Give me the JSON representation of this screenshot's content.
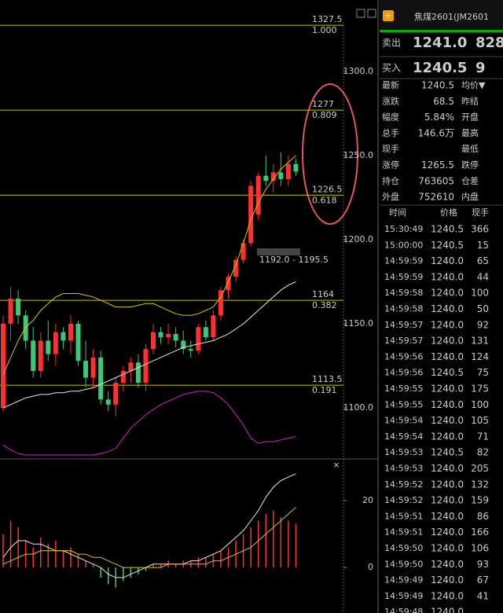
{
  "header": {
    "title": "焦煤2601(JM2601"
  },
  "quote": {
    "sell": {
      "label": "卖出",
      "price": "1241.0",
      "volume": "828"
    },
    "buy": {
      "label": "买入",
      "price": "1240.5",
      "volume": "9"
    },
    "rows": [
      {
        "label": "最新",
        "value": "1240.5",
        "color": "#ff4040",
        "label2": "均价▼"
      },
      {
        "label": "涨跌",
        "value": "68.5",
        "color": "#ff4040",
        "label2": "昨结"
      },
      {
        "label": "幅度",
        "value": "5.84%",
        "color": "#ff4040",
        "label2": "开盘"
      },
      {
        "label": "总手",
        "value": "146.6万",
        "color": "#dddddd",
        "label2": "最高"
      },
      {
        "label": "现手",
        "label2": "最低"
      },
      {
        "label": "涨停",
        "value": "1265.5",
        "color": "#ff4040",
        "label2": "跌停"
      },
      {
        "label": "持仓",
        "value": "763605",
        "color": "#dddddd",
        "label2": "仓差"
      },
      {
        "label": "外盘",
        "value": "752610",
        "color": "#ff4040",
        "label2": "内盘"
      }
    ]
  },
  "trades": {
    "columns": [
      "时间",
      "价格",
      "现手"
    ],
    "rows": [
      {
        "time": "15:30:49",
        "price": "1240.5",
        "volume": "366",
        "color": "#22dd22"
      },
      {
        "time": "15:00:00",
        "price": "1240.5",
        "volume": "15",
        "color": "#ff4040"
      },
      {
        "time": "14:59:59",
        "price": "1240.0",
        "volume": "65",
        "color": "#22dd22"
      },
      {
        "time": "14:59:59",
        "price": "1240.0",
        "volume": "44",
        "color": "#22dd22"
      },
      {
        "time": "14:59:58",
        "price": "1240.0",
        "volume": "100",
        "color": "#22dd22"
      },
      {
        "time": "14:59:58",
        "price": "1240.0",
        "volume": "50",
        "color": "#22dd22"
      },
      {
        "time": "14:59:57",
        "price": "1240.0",
        "volume": "92",
        "color": "#ff4040"
      },
      {
        "time": "14:59:57",
        "price": "1240.0",
        "volume": "131",
        "color": "#22dd22"
      },
      {
        "time": "14:59:56",
        "price": "1240.0",
        "volume": "124",
        "color": "#22dd22"
      },
      {
        "time": "14:59:56",
        "price": "1240.5",
        "volume": "75",
        "color": "#ff4040"
      },
      {
        "time": "14:59:55",
        "price": "1240.0",
        "volume": "175",
        "color": "#22dd22"
      },
      {
        "time": "14:59:55",
        "price": "1240.0",
        "volume": "100",
        "color": "#22dd22"
      },
      {
        "time": "14:59:54",
        "price": "1240.0",
        "volume": "105",
        "color": "#22dd22"
      },
      {
        "time": "14:59:54",
        "price": "1240.0",
        "volume": "71",
        "color": "#22dd22"
      },
      {
        "time": "14:59:53",
        "price": "1240.5",
        "volume": "82",
        "color": "#ff4040"
      },
      {
        "time": "14:59:53",
        "price": "1240.0",
        "volume": "205",
        "color": "#ff4040"
      },
      {
        "time": "14:59:52",
        "price": "1240.0",
        "volume": "132",
        "color": "#ff4040"
      },
      {
        "time": "14:59:52",
        "price": "1240.0",
        "volume": "159",
        "color": "#ff4040"
      },
      {
        "time": "14:59:51",
        "price": "1240.0",
        "volume": "86",
        "color": "#22dd22"
      },
      {
        "time": "14:59:51",
        "price": "1240.0",
        "volume": "166",
        "color": "#22dd22"
      },
      {
        "time": "14:59:50",
        "price": "1240.0",
        "volume": "106",
        "color": "#22dd22"
      },
      {
        "time": "14:59:50",
        "price": "1240.0",
        "volume": "93",
        "color": "#22dd22"
      },
      {
        "time": "14:59:49",
        "price": "1240.0",
        "volume": "67",
        "color": "#ff4040"
      },
      {
        "time": "14:59:49",
        "price": "1240.0",
        "volume": "41",
        "color": "#ff4040"
      },
      {
        "time": "14:59:48",
        "price": "1240.0"
      }
    ]
  },
  "chart_data": [
    {
      "type": "candlestick",
      "up_color": "#ff3030",
      "down_color": "#3cc878",
      "open": [
        1100,
        1150,
        1165,
        1155,
        1140,
        1122,
        1140,
        1132,
        1145,
        1140,
        1150,
        1128,
        1118,
        1130,
        1105,
        1102,
        1115,
        1122,
        1127,
        1115,
        1135,
        1145,
        1142,
        1144,
        1140,
        1135,
        1134,
        1148,
        1142,
        1155,
        1170,
        1178,
        1188,
        1198,
        1215,
        1238,
        1235,
        1240,
        1236,
        1245
      ],
      "high": [
        1155,
        1172,
        1170,
        1158,
        1148,
        1145,
        1152,
        1150,
        1148,
        1155,
        1152,
        1140,
        1135,
        1134,
        1110,
        1118,
        1125,
        1130,
        1132,
        1138,
        1150,
        1148,
        1150,
        1148,
        1146,
        1140,
        1150,
        1152,
        1158,
        1172,
        1180,
        1190,
        1200,
        1235,
        1240,
        1250,
        1245,
        1252,
        1250,
        1248
      ],
      "low": [
        1098,
        1140,
        1150,
        1135,
        1118,
        1118,
        1128,
        1125,
        1135,
        1132,
        1125,
        1112,
        1112,
        1102,
        1098,
        1095,
        1110,
        1115,
        1112,
        1110,
        1132,
        1138,
        1138,
        1136,
        1132,
        1130,
        1132,
        1140,
        1140,
        1152,
        1165,
        1175,
        1186,
        1196,
        1212,
        1232,
        1228,
        1232,
        1232,
        1238
      ],
      "close": [
        1150,
        1165,
        1155,
        1140,
        1122,
        1140,
        1132,
        1145,
        1140,
        1150,
        1128,
        1118,
        1130,
        1105,
        1102,
        1115,
        1122,
        1127,
        1115,
        1135,
        1145,
        1142,
        1144,
        1140,
        1135,
        1134,
        1148,
        1142,
        1155,
        1170,
        1178,
        1188,
        1198,
        1232,
        1238,
        1235,
        1240,
        1236,
        1245,
        1240.5
      ],
      "series": [
        {
          "color": "#d8c800",
          "values": [
            1120,
            1130,
            1140,
            1148,
            1152,
            1158,
            1162,
            1166,
            1168,
            1168,
            1168,
            1167,
            1166,
            1164,
            1162,
            1160,
            1160,
            1160,
            1161,
            1162,
            1162,
            1160,
            1158,
            1156,
            1155,
            1155,
            1156,
            1158,
            1160,
            1166,
            1175,
            1185,
            1198,
            1212,
            1222,
            1230,
            1236,
            1242,
            1246,
            1250
          ]
        },
        {
          "color": "#e8e8e8",
          "values": [
            1100,
            1102,
            1104,
            1106,
            1107,
            1108,
            1108,
            1109,
            1109,
            1110,
            1110,
            1111,
            1112,
            1114,
            1116,
            1118,
            1120,
            1122,
            1124,
            1126,
            1128,
            1130,
            1132,
            1134,
            1136,
            1137,
            1138,
            1139,
            1140,
            1142,
            1144,
            1147,
            1150,
            1154,
            1158,
            1162,
            1166,
            1170,
            1173,
            1175
          ]
        },
        {
          "color": "#d020d0",
          "values": [
            1078,
            1075,
            1073,
            1072,
            1072,
            1072,
            1072,
            1072,
            1072,
            1072,
            1072,
            1072,
            1072,
            1073,
            1074,
            1076,
            1082,
            1088,
            1092,
            1096,
            1099,
            1102,
            1104,
            1106,
            1108,
            1109,
            1110,
            1110,
            1109,
            1106,
            1102,
            1096,
            1090,
            1082,
            1079,
            1080,
            1080,
            1081,
            1082,
            1083
          ]
        }
      ],
      "ylim": [
        1070.6,
        1329.4
      ],
      "yticks": [
        {
          "value": 1300,
          "label": "1300.0"
        },
        {
          "value": 1250,
          "label": "1250.0"
        },
        {
          "value": 1200,
          "label": "1200.0"
        },
        {
          "value": 1150,
          "label": "1150.0"
        },
        {
          "value": 1100,
          "label": "1100.0"
        }
      ],
      "fib_levels": [
        {
          "price": 1327.5,
          "ratio": "1.000"
        },
        {
          "price": 1277.0,
          "ratio": "0.809"
        },
        {
          "price": 1226.5,
          "ratio": "0.618"
        },
        {
          "price": 1164.0,
          "ratio": "0.382"
        },
        {
          "price": 1113.5,
          "ratio": "0.191"
        }
      ],
      "annotation": "1192.0 - 1195.5"
    },
    {
      "type": "macd",
      "up_color": "#ff3030",
      "down_color": "#3cc878",
      "values": [
        10,
        14,
        12,
        8,
        6,
        9,
        7,
        8,
        5,
        6,
        4,
        2,
        1,
        -3,
        -5,
        -6,
        -4,
        -3,
        -2,
        -1,
        1,
        1,
        2,
        1,
        2,
        2,
        3,
        3,
        4,
        5,
        6,
        8,
        10,
        12,
        14,
        16,
        17,
        15,
        14,
        13
      ],
      "series": [
        {
          "color": "#e8e8e8",
          "values": [
            3,
            6,
            8,
            8,
            7,
            7,
            6,
            5,
            5,
            4,
            3,
            2,
            1,
            0,
            -2,
            -3,
            -3,
            -2,
            -1,
            0,
            1,
            1,
            1,
            1,
            1,
            2,
            2,
            3,
            4,
            5,
            7,
            9,
            11,
            14,
            17,
            21,
            24,
            26,
            27,
            28
          ]
        },
        {
          "color": "#d8c800",
          "values": [
            1,
            2,
            3,
            4,
            4,
            5,
            5,
            5,
            5,
            5,
            4,
            4,
            3,
            3,
            2,
            1,
            0,
            0,
            0,
            0,
            0,
            0,
            1,
            1,
            1,
            1,
            1,
            1,
            2,
            2,
            3,
            4,
            5,
            6,
            8,
            10,
            12,
            14,
            16,
            18
          ]
        }
      ],
      "ylim": [
        -13.6,
        32.2
      ],
      "yticks": [
        20,
        0
      ]
    }
  ]
}
